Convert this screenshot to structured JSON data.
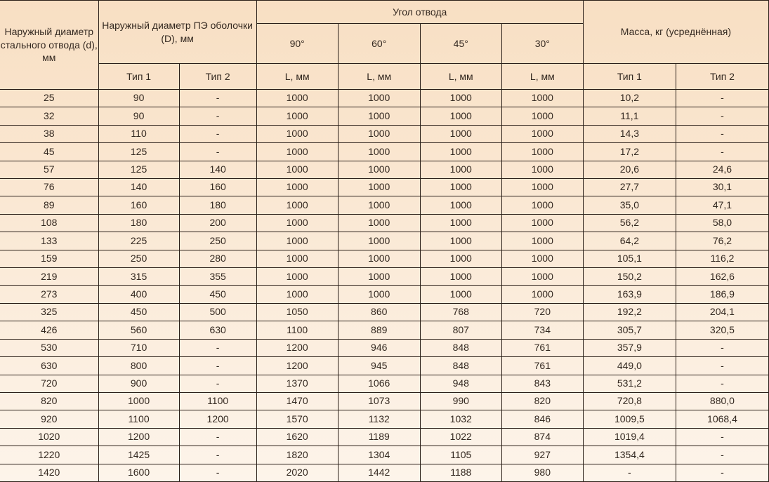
{
  "type": "table",
  "background_gradient": {
    "top": "#f8dfc3",
    "bottom": "#fdf4ea"
  },
  "border_color": "#2a1f18",
  "text_color": "#332820",
  "font_family": "Arial",
  "header_fontsize": 14,
  "body_fontsize": 14,
  "headers": {
    "col_d_label": "Наружный диаметр стального отвода (d), мм",
    "col_D_label": "Наружный диаметр ПЭ оболочки (D), мм",
    "angle_group": "Угол отвода",
    "mass_group": "Масса, кг (усреднённая)",
    "angle_90": "90°",
    "angle_60": "60°",
    "angle_45": "45°",
    "angle_30": "30°",
    "type1": "Тип 1",
    "type2": "Тип 2",
    "L_mm": "L, мм"
  },
  "columns": [
    "d_mm",
    "D_type1",
    "D_type2",
    "L90",
    "L60",
    "L45",
    "L30",
    "mass_type1",
    "mass_type2"
  ],
  "column_alignment": [
    "center",
    "center",
    "center",
    "center",
    "center",
    "center",
    "center",
    "center",
    "center"
  ],
  "rows": [
    [
      "25",
      "90",
      "-",
      "1000",
      "1000",
      "1000",
      "1000",
      "10,2",
      "-"
    ],
    [
      "32",
      "90",
      "-",
      "1000",
      "1000",
      "1000",
      "1000",
      "11,1",
      "-"
    ],
    [
      "38",
      "110",
      "-",
      "1000",
      "1000",
      "1000",
      "1000",
      "14,3",
      "-"
    ],
    [
      "45",
      "125",
      "-",
      "1000",
      "1000",
      "1000",
      "1000",
      "17,2",
      "-"
    ],
    [
      "57",
      "125",
      "140",
      "1000",
      "1000",
      "1000",
      "1000",
      "20,6",
      "24,6"
    ],
    [
      "76",
      "140",
      "160",
      "1000",
      "1000",
      "1000",
      "1000",
      "27,7",
      "30,1"
    ],
    [
      "89",
      "160",
      "180",
      "1000",
      "1000",
      "1000",
      "1000",
      "35,0",
      "47,1"
    ],
    [
      "108",
      "180",
      "200",
      "1000",
      "1000",
      "1000",
      "1000",
      "56,2",
      "58,0"
    ],
    [
      "133",
      "225",
      "250",
      "1000",
      "1000",
      "1000",
      "1000",
      "64,2",
      "76,2"
    ],
    [
      "159",
      "250",
      "280",
      "1000",
      "1000",
      "1000",
      "1000",
      "105,1",
      "116,2"
    ],
    [
      "219",
      "315",
      "355",
      "1000",
      "1000",
      "1000",
      "1000",
      "150,2",
      "162,6"
    ],
    [
      "273",
      "400",
      "450",
      "1000",
      "1000",
      "1000",
      "1000",
      "163,9",
      "186,9"
    ],
    [
      "325",
      "450",
      "500",
      "1050",
      "860",
      "768",
      "720",
      "192,2",
      "204,1"
    ],
    [
      "426",
      "560",
      "630",
      "1100",
      "889",
      "807",
      "734",
      "305,7",
      "320,5"
    ],
    [
      "530",
      "710",
      "-",
      "1200",
      "946",
      "848",
      "761",
      "357,9",
      "-"
    ],
    [
      "630",
      "800",
      "-",
      "1200",
      "945",
      "848",
      "761",
      "449,0",
      "-"
    ],
    [
      "720",
      "900",
      "-",
      "1370",
      "1066",
      "948",
      "843",
      "531,2",
      "-"
    ],
    [
      "820",
      "1000",
      "1100",
      "1470",
      "1073",
      "990",
      "820",
      "720,8",
      "880,0"
    ],
    [
      "920",
      "1100",
      "1200",
      "1570",
      "1132",
      "1032",
      "846",
      "1009,5",
      "1068,4"
    ],
    [
      "1020",
      "1200",
      "-",
      "1620",
      "1189",
      "1022",
      "874",
      "1019,4",
      "-"
    ],
    [
      "1220",
      "1425",
      "-",
      "1820",
      "1304",
      "1105",
      "927",
      "1354,4",
      "-"
    ],
    [
      "1420",
      "1600",
      "-",
      "2020",
      "1442",
      "1188",
      "980",
      "-",
      "-"
    ]
  ]
}
